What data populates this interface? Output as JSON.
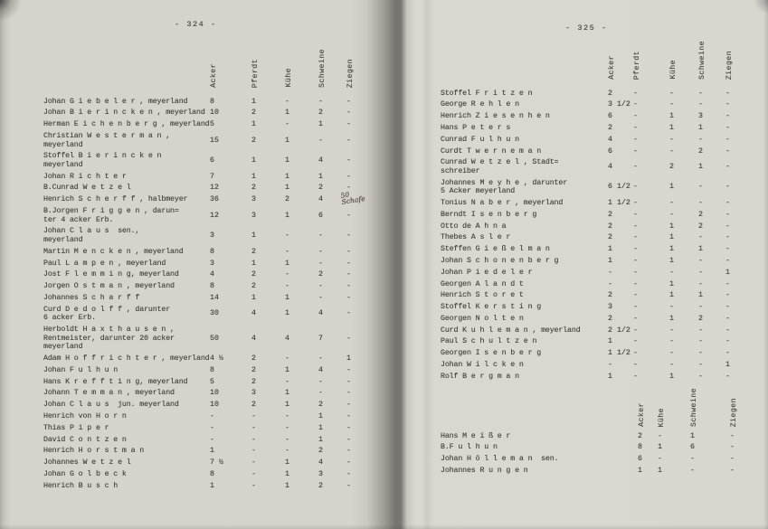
{
  "scan": {
    "left_page": {
      "page_number": "- 324 -",
      "columns": [
        "Acker",
        "Pferdt",
        "Kühe",
        "Schweine",
        "Ziegen"
      ],
      "rows": [
        {
          "name": "Johan G i e b e l e r , meyerland",
          "values": [
            "8",
            "1",
            "-",
            "-",
            "-"
          ]
        },
        {
          "name": "Johan B i e r i n c k e n , meyerland",
          "values": [
            "10",
            "2",
            "1",
            "2",
            "-"
          ]
        },
        {
          "name": "Herman E i c h e n b e r g , meyerland",
          "values": [
            "5",
            "1",
            "-",
            "1",
            "-"
          ]
        },
        {
          "name": "Christian W e s t e r m a n ,\nmeyerland",
          "values": [
            "15",
            "2",
            "1",
            "-",
            "-"
          ]
        },
        {
          "name": "Stoffel B i e r i n c k e n\nmeyerland",
          "values": [
            "6",
            "1",
            "1",
            "4",
            "-"
          ]
        },
        {
          "name": "Johan R i c h t e r",
          "values": [
            "7",
            "1",
            "1",
            "1",
            "-"
          ]
        },
        {
          "name": "B.Cunrad W e t z e l",
          "values": [
            "12",
            "2",
            "1",
            "2",
            "-"
          ]
        },
        {
          "name": "Henrich S c h e r f f , halbmeyer",
          "values": [
            "36",
            "3",
            "2",
            "4",
            ""
          ],
          "note": "50\nSchafe"
        },
        {
          "name": "B.Jorgen F r i g g e n , darun=\nter 4 acker Erb.",
          "values": [
            "12",
            "3",
            "1",
            "6",
            "-"
          ]
        },
        {
          "name": "Johan C l a u s  sen.,\nmeyerland",
          "values": [
            "3",
            "1",
            "-",
            "-",
            "-"
          ]
        },
        {
          "name": "Martin M e n c k e n , meyerland",
          "values": [
            "8",
            "2",
            "-",
            "-",
            "-"
          ]
        },
        {
          "name": "Paul L a m p e n , meyerland",
          "values": [
            "3",
            "1",
            "1",
            "-",
            "-"
          ]
        },
        {
          "name": "Jost F l e m m i n g, meyerland",
          "values": [
            "4",
            "2",
            "-",
            "2",
            "-"
          ]
        },
        {
          "name": "Jorgen O s t m a n , meyerland",
          "values": [
            "8",
            "2",
            "-",
            "-",
            "-"
          ]
        },
        {
          "name": "Johannes S c h a r f f",
          "values": [
            "14",
            "1",
            "1",
            "-",
            "-"
          ]
        },
        {
          "name": "Curd D e d o l f f , darunter\n6 acker Erb.",
          "values": [
            "30",
            "4",
            "1",
            "4",
            "-"
          ]
        },
        {
          "name": "Herboldt H a x t h a u s e n ,\nRentmeister, darunter 20 acker\nmeyerland",
          "values": [
            "50",
            "4",
            "4",
            "7",
            "-"
          ]
        },
        {
          "name": "Adam H o f f r i c h t e r , meyerland",
          "values": [
            "4 ½",
            "2",
            "-",
            "-",
            "1"
          ]
        },
        {
          "name": "Johan F u l h u n",
          "values": [
            "8",
            "2",
            "1",
            "4",
            "-"
          ]
        },
        {
          "name": "Hans K r e f f t i n g, meyerland",
          "values": [
            "5",
            "2",
            "-",
            "-",
            "-"
          ]
        },
        {
          "name": "Johann T e m m a n , meyerland",
          "values": [
            "10",
            "3",
            "1",
            "-",
            "-"
          ]
        },
        {
          "name": "Johan C l a u s  jun. meyerland",
          "values": [
            "10",
            "2",
            "1",
            "2",
            "-"
          ]
        },
        {
          "name": "Henrich von H o r n",
          "values": [
            "-",
            "-",
            "-",
            "1",
            "-"
          ]
        },
        {
          "name": "Thias P i p e r",
          "values": [
            "-",
            "-",
            "-",
            "1",
            "-"
          ]
        },
        {
          "name": "David C o n t z e n",
          "values": [
            "-",
            "-",
            "-",
            "1",
            "-"
          ]
        },
        {
          "name": "Henrich H o r s t m a n",
          "values": [
            "1",
            "-",
            "-",
            "2",
            "-"
          ]
        },
        {
          "name": "Johannes W e t z e l",
          "values": [
            "7 ½",
            "-",
            "1",
            "4",
            "-"
          ]
        },
        {
          "name": "Johan G o l b e c k",
          "values": [
            "8",
            "-",
            "1",
            "3",
            "-"
          ]
        },
        {
          "name": "Henrich B u s c h",
          "values": [
            "1",
            "-",
            "1",
            "2",
            "-"
          ]
        }
      ]
    },
    "right_page": {
      "page_number": "- 325 -",
      "columns": [
        "Acker",
        "Pferdt",
        "Kühe",
        "Schweine",
        "Ziegen"
      ],
      "rows": [
        {
          "name": "Stoffel F r i t z e n",
          "values": [
            "2",
            "-",
            "-",
            "-",
            "-"
          ]
        },
        {
          "name": "George R e h l e n",
          "values": [
            "3 1/2",
            "-",
            "-",
            "-",
            "-"
          ]
        },
        {
          "name": "Henrich Z i e s e n h e n",
          "values": [
            "6",
            "-",
            "1",
            "3",
            "-"
          ]
        },
        {
          "name": "Hans P e t e r s",
          "values": [
            "2",
            "-",
            "1",
            "1",
            "-"
          ]
        },
        {
          "name": "Cunrad F u l h u n",
          "values": [
            "4",
            "-",
            "-",
            "-",
            "-"
          ]
        },
        {
          "name": "Curdt T w e r n e m a n",
          "values": [
            "6",
            "-",
            "-",
            "2",
            "-"
          ]
        },
        {
          "name": "Cunrad W e t z e l , Stadt=\nschreiber",
          "values": [
            "4",
            "-",
            "2",
            "1",
            "-"
          ]
        },
        {
          "name": "Johannes M e y h e , darunter\n5 Acker meyerland",
          "values": [
            "6 1/2",
            "-",
            "1",
            "-",
            "-"
          ]
        },
        {
          "name": "Tonius N a b e r , meyerland",
          "values": [
            "1 1/2",
            "-",
            "-",
            "-",
            "-"
          ]
        },
        {
          "name": "Berndt I s e n b e r g",
          "values": [
            "2",
            "-",
            "-",
            "2",
            "-"
          ]
        },
        {
          "name": "Otto de A h n a",
          "values": [
            "2",
            "-",
            "1",
            "2",
            "-"
          ]
        },
        {
          "name": "Thebes A s l e r",
          "values": [
            "2",
            "-",
            "1",
            "-",
            "-"
          ]
        },
        {
          "name": "Steffen G i e ß e l m a n",
          "values": [
            "1",
            "-",
            "1",
            "1",
            "-"
          ]
        },
        {
          "name": "Johan S c h o n e n b e r g",
          "values": [
            "1",
            "-",
            "1",
            "-",
            "-"
          ]
        },
        {
          "name": "Johan P i e d e l e r",
          "values": [
            "-",
            "-",
            "-",
            "-",
            "1"
          ]
        },
        {
          "name": "Georgen A l a n d t",
          "values": [
            "-",
            "-",
            "1",
            "-",
            "-"
          ]
        },
        {
          "name": "Henrich S t o r e t",
          "values": [
            "2",
            "-",
            "1",
            "1",
            "-"
          ]
        },
        {
          "name": "Stoffel K e r s t i n g",
          "values": [
            "3",
            "-",
            "-",
            "-",
            "-"
          ]
        },
        {
          "name": "Georgen N o l t e n",
          "values": [
            "2",
            "-",
            "1",
            "2",
            "-"
          ]
        },
        {
          "name": "Curd K u h l e m a n , meyerland",
          "values": [
            "2 1/2",
            "-",
            "-",
            "-",
            "-"
          ]
        },
        {
          "name": "Paul S c h u l t z e n",
          "values": [
            "1",
            "-",
            "-",
            "-",
            "-"
          ]
        },
        {
          "name": "Georgen I s e n b e r g",
          "values": [
            "1 1/2",
            "-",
            "-",
            "-",
            "-"
          ]
        },
        {
          "name": "Johan W i l c k e n",
          "values": [
            "-",
            "-",
            "-",
            "-",
            "1"
          ]
        },
        {
          "name": "Rolf B e r g m a n",
          "values": [
            "1",
            "-",
            "1",
            "-",
            "-"
          ]
        }
      ],
      "second_table": {
        "columns": [
          "Acker",
          "Kühe",
          "Schweine",
          "Ziegen"
        ],
        "rows": [
          {
            "name": "Hans M e i ß e r",
            "values": [
              "2",
              "-",
              "1",
              "-"
            ]
          },
          {
            "name": "B.F u l h u n",
            "values": [
              "8",
              "1",
              "6",
              "-"
            ]
          },
          {
            "name": "Johan H ö l l e m a n  sen.",
            "values": [
              "6",
              "-",
              "-",
              "-"
            ]
          },
          {
            "name": "Johannes R u n g e n",
            "values": [
              "1",
              "1",
              "-",
              "-"
            ]
          }
        ]
      }
    },
    "handwritten_annotation": "50 Schafe"
  }
}
